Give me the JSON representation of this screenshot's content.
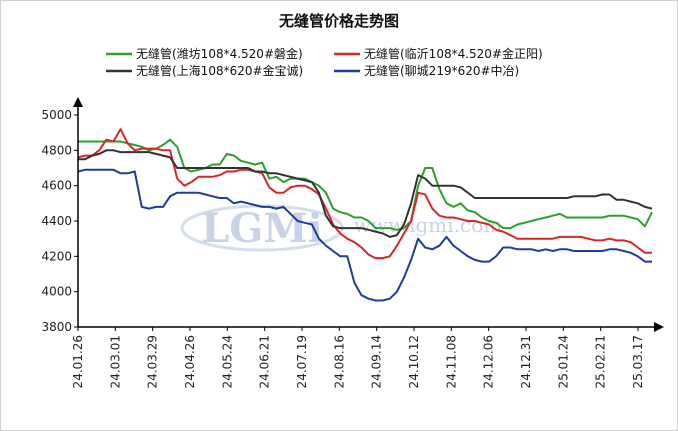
{
  "chart_data": {
    "type": "line",
    "title": "无缝管价格走势图",
    "xlabel": "",
    "ylabel": "",
    "ylim": [
      3800,
      5000
    ],
    "yticks": [
      3800,
      4000,
      4200,
      4400,
      4600,
      4800,
      5000
    ],
    "x_tick_labels": [
      "24.01.26",
      "24.03.01",
      "24.03.29",
      "24.04.26",
      "24.05.24",
      "24.06.21",
      "24.07.19",
      "24.08.16",
      "24.09.14",
      "24.10.12",
      "24.11.08",
      "24.12.06",
      "24.12.31",
      "25.01.24",
      "25.02.21",
      "25.03.17"
    ],
    "legend_position": "top",
    "grid": false,
    "series": [
      {
        "name": "无缝管(潍坊108*4.520#磐金)",
        "color": "#2ca02c",
        "values": [
          4850,
          4850,
          4850,
          4850,
          4850,
          4850,
          4850,
          4840,
          4830,
          4820,
          4800,
          4810,
          4830,
          4860,
          4820,
          4700,
          4680,
          4690,
          4700,
          4720,
          4720,
          4780,
          4770,
          4740,
          4730,
          4720,
          4730,
          4640,
          4650,
          4620,
          4640,
          4640,
          4640,
          4620,
          4600,
          4560,
          4470,
          4450,
          4440,
          4420,
          4420,
          4400,
          4360,
          4360,
          4360,
          4350,
          4360,
          4400,
          4600,
          4700,
          4700,
          4580,
          4500,
          4480,
          4500,
          4460,
          4450,
          4420,
          4400,
          4390,
          4360,
          4360,
          4380,
          4390,
          4400,
          4410,
          4420,
          4430,
          4440,
          4420,
          4420,
          4420,
          4420,
          4420,
          4420,
          4430,
          4430,
          4430,
          4420,
          4410,
          4370,
          4450
        ],
        "style": "solid"
      },
      {
        "name": "无缝管(临沂108*4.520#金正阳)",
        "color": "#d62728",
        "values": [
          4760,
          4770,
          4770,
          4800,
          4860,
          4850,
          4920,
          4840,
          4800,
          4810,
          4810,
          4810,
          4800,
          4800,
          4640,
          4600,
          4620,
          4650,
          4650,
          4650,
          4660,
          4680,
          4680,
          4690,
          4690,
          4680,
          4670,
          4590,
          4560,
          4560,
          4590,
          4600,
          4600,
          4580,
          4550,
          4470,
          4380,
          4330,
          4300,
          4280,
          4250,
          4210,
          4190,
          4190,
          4200,
          4260,
          4330,
          4400,
          4560,
          4550,
          4470,
          4430,
          4420,
          4420,
          4410,
          4400,
          4400,
          4390,
          4380,
          4350,
          4340,
          4320,
          4300,
          4300,
          4300,
          4300,
          4300,
          4300,
          4310,
          4310,
          4310,
          4310,
          4300,
          4290,
          4290,
          4300,
          4290,
          4290,
          4280,
          4250,
          4220,
          4220
        ],
        "style": "solid"
      },
      {
        "name": "无缝管(上海108*620#金宝诚)",
        "color": "#333333",
        "values": [
          4750,
          4750,
          4770,
          4780,
          4800,
          4800,
          4790,
          4790,
          4790,
          4790,
          4790,
          4780,
          4770,
          4760,
          4700,
          4700,
          4700,
          4700,
          4700,
          4700,
          4700,
          4700,
          4700,
          4700,
          4700,
          4680,
          4680,
          4670,
          4670,
          4660,
          4650,
          4640,
          4630,
          4620,
          4560,
          4430,
          4370,
          4360,
          4360,
          4360,
          4360,
          4350,
          4340,
          4330,
          4310,
          4320,
          4380,
          4500,
          4660,
          4640,
          4600,
          4600,
          4600,
          4600,
          4590,
          4560,
          4530,
          4530,
          4530,
          4530,
          4530,
          4530,
          4530,
          4530,
          4530,
          4530,
          4530,
          4530,
          4530,
          4530,
          4540,
          4540,
          4540,
          4540,
          4550,
          4550,
          4520,
          4520,
          4510,
          4500,
          4480,
          4470
        ],
        "style": "solid"
      },
      {
        "name": "无缝管(聊城219*620#中冶)",
        "color": "#1f3b9c",
        "values": [
          4680,
          4690,
          4690,
          4690,
          4690,
          4690,
          4670,
          4670,
          4680,
          4480,
          4470,
          4480,
          4480,
          4540,
          4560,
          4560,
          4560,
          4560,
          4550,
          4540,
          4530,
          4530,
          4500,
          4510,
          4500,
          4490,
          4480,
          4480,
          4470,
          4480,
          4440,
          4400,
          4390,
          4380,
          4300,
          4260,
          4230,
          4200,
          4200,
          4050,
          3980,
          3960,
          3950,
          3950,
          3960,
          4000,
          4080,
          4180,
          4300,
          4250,
          4240,
          4260,
          4310,
          4260,
          4230,
          4200,
          4180,
          4170,
          4170,
          4200,
          4250,
          4250,
          4240,
          4240,
          4240,
          4230,
          4240,
          4230,
          4240,
          4240,
          4230,
          4230,
          4230,
          4230,
          4230,
          4240,
          4240,
          4230,
          4220,
          4200,
          4170,
          4170
        ],
        "style": "solid"
      }
    ]
  },
  "watermark": {
    "logo_text": "LGMi",
    "url_text": "www.lgmi.com"
  },
  "colors": {
    "axis": "#000000",
    "background": "#ffffff",
    "watermark": "#c9d3e6"
  }
}
